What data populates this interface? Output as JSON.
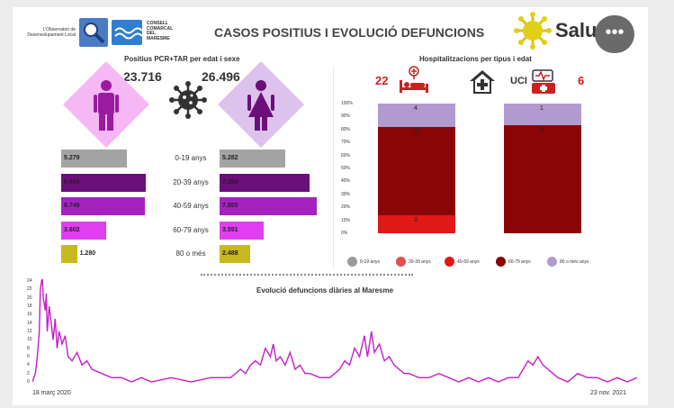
{
  "header": {
    "title": "CASOS POSITIUS I EVOLUCIÓ DEFUNCIONS",
    "org_line1": "L'Observatori de",
    "org_line2": "Desenvolupament Local",
    "consell_line1": "CONSELL",
    "consell_line2": "COMARCAL",
    "consell_line3": "DEL",
    "consell_line4": "MARESME",
    "salut_label": "Salut",
    "more_label": "•••",
    "logo_icon": "magnifier-logo-icon",
    "consell_icon": "wave-logo-icon",
    "salut_icon": "sun-logo-icon"
  },
  "positius": {
    "title": "Positius PCR+TAR per edat i sexe",
    "male_total": "23.716",
    "female_total": "26.496",
    "male_icon": "male-person-icon",
    "female_icon": "female-person-icon",
    "virus_icon": "virus-icon",
    "age_groups": [
      "0-19 anys",
      "20-39 anys",
      "40-59 anys",
      "60-79 anys",
      "80 o més"
    ],
    "male": [
      {
        "label": "5.279",
        "value": 5279
      },
      {
        "label": "6.806",
        "value": 6806
      },
      {
        "label": "6.749",
        "value": 6749
      },
      {
        "label": "3.602",
        "value": 3602
      },
      {
        "label": "1.280",
        "value": 1280
      }
    ],
    "female": [
      {
        "label": "5.282",
        "value": 5282
      },
      {
        "label": "7.280",
        "value": 7280
      },
      {
        "label": "7.855",
        "value": 7855
      },
      {
        "label": "3.591",
        "value": 3591
      },
      {
        "label": "2.488",
        "value": 2488
      }
    ],
    "colors": [
      "#a3a3a3",
      "#6b0f7a",
      "#a522c0",
      "#e03ef0",
      "#c8b81f"
    ]
  },
  "hosp": {
    "title": "Hospitalitzacions per tipus i edat",
    "total_hosp": "22",
    "uci_label": "UCI",
    "total_uci": "6",
    "bed_icon": "hospital-bed-icon",
    "house_icon": "house-cross-icon",
    "uci_icon": "icu-ambulance-icon"
  },
  "chart_data": [
    {
      "type": "bar",
      "title": "Positius PCR+TAR per edat i sexe",
      "categories": [
        "0-19 anys",
        "20-39 anys",
        "40-59 anys",
        "60-79 anys",
        "80 o més"
      ],
      "series": [
        {
          "values": [
            5279,
            6806,
            6749,
            3602,
            1280
          ]
        },
        {
          "values": [
            5282,
            7280,
            7855,
            3591,
            2488
          ]
        }
      ]
    },
    {
      "type": "bar",
      "stacked": "100%",
      "title": "Hospitalitzacions per tipus i edat",
      "categories": [
        "",
        "UCI"
      ],
      "y_ticks": [
        "0%",
        "10%",
        "20%",
        "30%",
        "40%",
        "50%",
        "60%",
        "70%",
        "80%",
        "90%",
        "100%"
      ],
      "ylim": [
        0,
        100
      ],
      "series": [
        {
          "name": "0-19 anys",
          "color": "#9a9a9a",
          "values": [
            0,
            0
          ],
          "labels": [
            "",
            ""
          ]
        },
        {
          "name": "20-39 anys",
          "color": "#e05050",
          "values": [
            0,
            0
          ],
          "labels": [
            "",
            ""
          ]
        },
        {
          "name": "40-59 anys",
          "color": "#e01818",
          "values": [
            3,
            0
          ],
          "labels": [
            "3",
            ""
          ]
        },
        {
          "name": "60-79 anys",
          "color": "#8a0606",
          "values": [
            15,
            5
          ],
          "labels": [
            "15",
            "5"
          ]
        },
        {
          "name": "80 o més anys",
          "color": "#b09ad0",
          "values": [
            4,
            1
          ],
          "labels": [
            "4",
            "1"
          ]
        }
      ],
      "legend_position": "bottom"
    },
    {
      "type": "line",
      "title": "Evolució defuncions diàries al Maresme",
      "x_start": "18 març 2020",
      "x_end": "23 nov. 2021",
      "y_ticks": [
        "0",
        "2",
        "4",
        "6",
        "8",
        "10",
        "12",
        "14",
        "16",
        "18",
        "20",
        "22",
        "24"
      ],
      "ylim": [
        0,
        24
      ],
      "color": "#c41ec8",
      "x": [
        0,
        3,
        5,
        7,
        8,
        10,
        11,
        13,
        14,
        15,
        17,
        19,
        21,
        23,
        25,
        27,
        30,
        33,
        36,
        40,
        45,
        50,
        55,
        60,
        70,
        80,
        90,
        100,
        110,
        120,
        140,
        160,
        180,
        200,
        210,
        215,
        220,
        225,
        230,
        235,
        240,
        243,
        246,
        250,
        255,
        260,
        265,
        270,
        275,
        280,
        290,
        300,
        310,
        315,
        320,
        325,
        330,
        335,
        338,
        342,
        345,
        350,
        355,
        360,
        365,
        370,
        375,
        380,
        390,
        400,
        410,
        420,
        430,
        440,
        450,
        460,
        470,
        480,
        490,
        495,
        500,
        505,
        510,
        515,
        520,
        525,
        530,
        540,
        550,
        560,
        570,
        580,
        590,
        600,
        610
      ],
      "y": [
        0,
        2,
        6,
        12,
        22,
        25,
        20,
        17,
        21,
        12,
        18,
        14,
        10,
        15,
        8,
        12,
        9,
        11,
        6,
        5,
        7,
        4,
        5,
        3,
        2,
        1,
        1,
        0,
        1,
        0,
        1,
        0,
        1,
        1,
        3,
        2,
        4,
        5,
        4,
        8,
        6,
        9,
        5,
        6,
        4,
        7,
        3,
        4,
        2,
        2,
        1,
        1,
        3,
        5,
        4,
        8,
        6,
        11,
        6,
        12,
        7,
        9,
        5,
        6,
        4,
        3,
        2,
        2,
        1,
        1,
        2,
        1,
        0,
        1,
        0,
        1,
        0,
        1,
        1,
        3,
        5,
        4,
        6,
        4,
        3,
        2,
        1,
        0,
        2,
        1,
        1,
        0,
        1,
        0,
        1
      ]
    }
  ]
}
